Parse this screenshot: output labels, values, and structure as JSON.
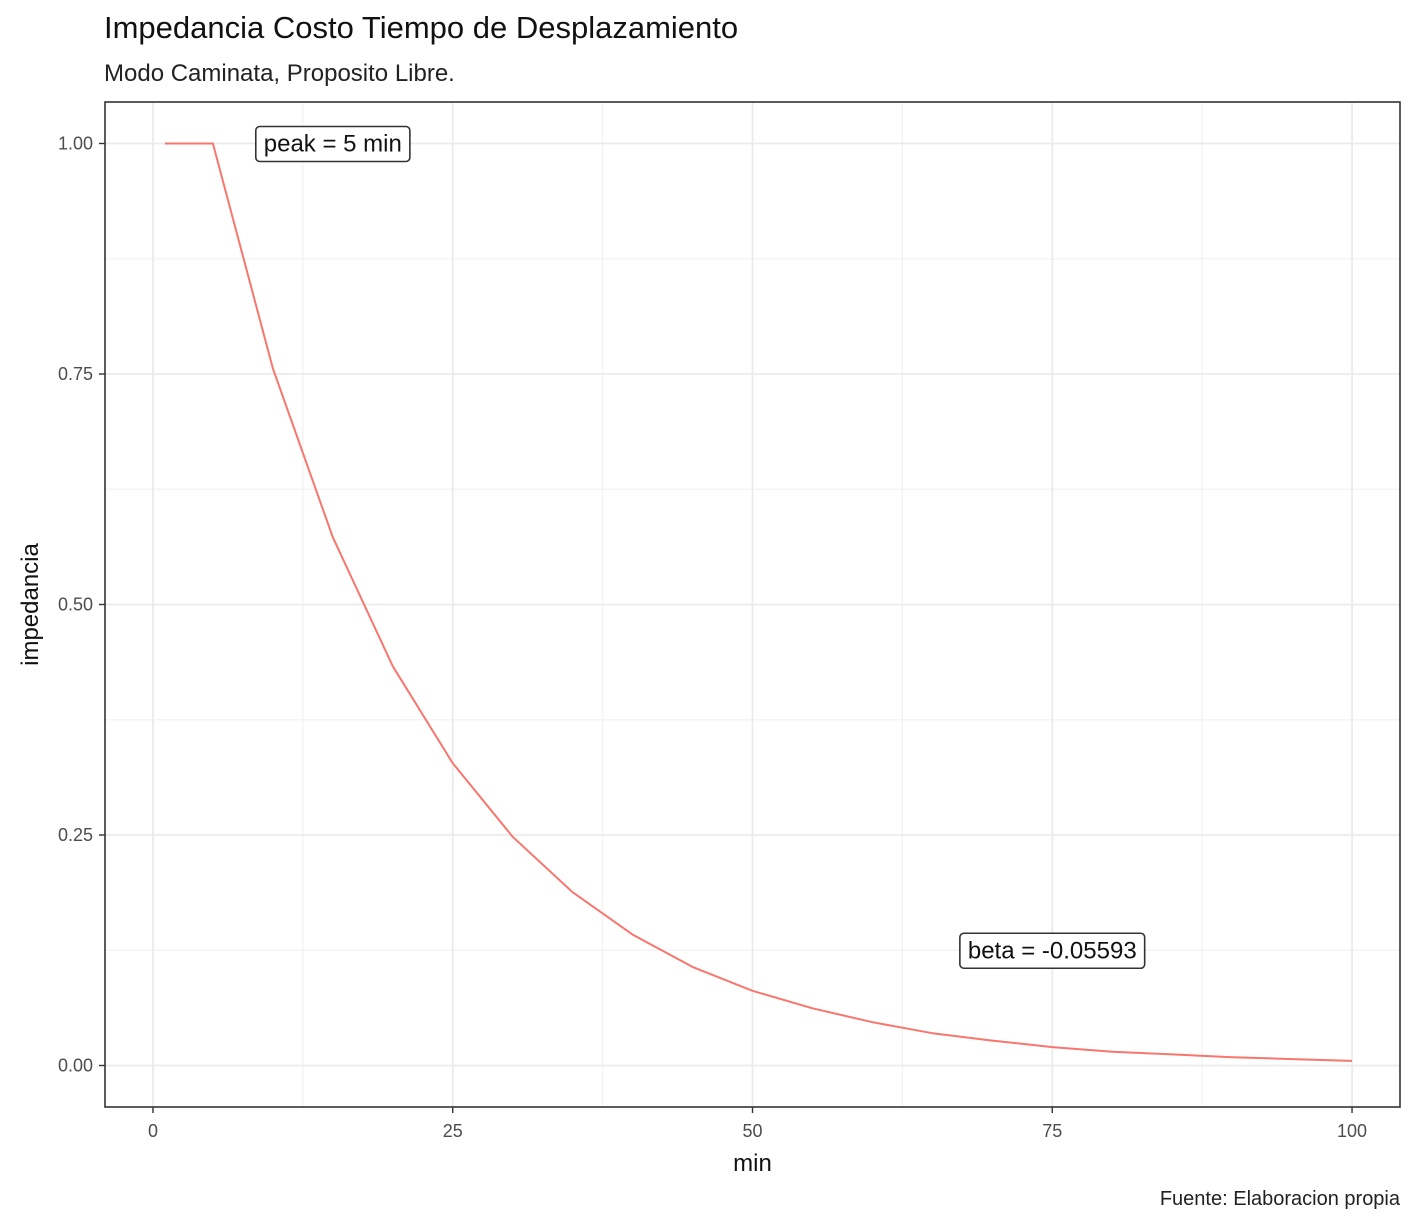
{
  "chart_data": {
    "type": "line",
    "title": "Impedancia Costo Tiempo de Desplazamiento",
    "subtitle": "Modo Caminata, Proposito Libre.",
    "caption": "Fuente: Elaboracion propia",
    "xlabel": "min",
    "ylabel": "impedancia",
    "xlim": [
      -4,
      104
    ],
    "ylim": [
      -0.045,
      1.045
    ],
    "x_ticks": [
      0,
      25,
      50,
      75,
      100
    ],
    "x_tick_labels": [
      "0",
      "25",
      "50",
      "75",
      "100"
    ],
    "y_ticks": [
      0,
      0.25,
      0.5,
      0.75,
      1
    ],
    "y_tick_labels": [
      "0.00",
      "0.25",
      "0.50",
      "0.75",
      "1.00"
    ],
    "grid": true,
    "series": [
      {
        "color": "#F8766D",
        "x": [
          1,
          5,
          10,
          15,
          20,
          25,
          30,
          35,
          40,
          45,
          50,
          55,
          60,
          65,
          70,
          75,
          80,
          85,
          90,
          95,
          100
        ],
        "y": [
          1.0,
          1.0,
          0.756,
          0.573,
          0.433,
          0.328,
          0.248,
          0.188,
          0.142,
          0.107,
          0.081,
          0.062,
          0.047,
          0.035,
          0.027,
          0.02,
          0.015,
          0.012,
          0.009,
          0.007,
          0.005
        ]
      }
    ],
    "annotations": [
      {
        "text": "peak = 5 min",
        "x": 15,
        "y": 1.0
      },
      {
        "text": "beta = -0.05593",
        "x": 75,
        "y": 0.125
      }
    ]
  }
}
